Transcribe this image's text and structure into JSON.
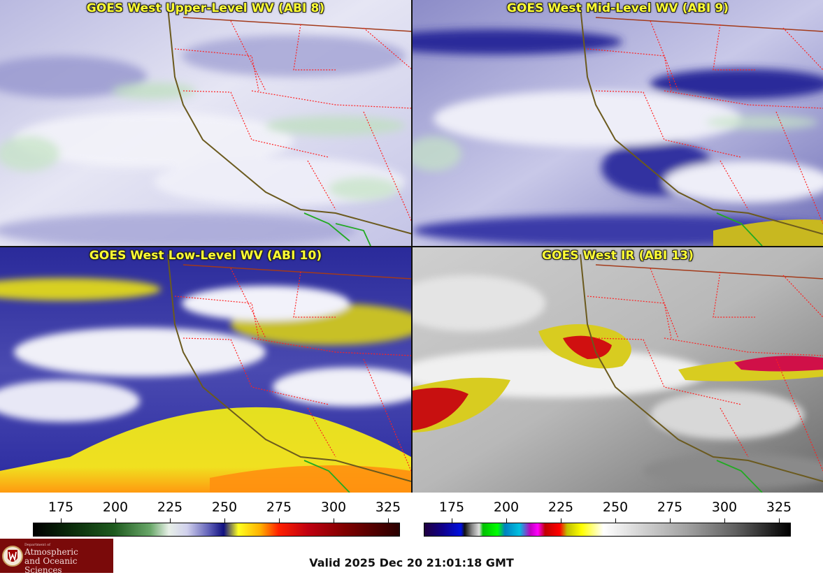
{
  "panels": [
    {
      "title": "GOES West Upper-Level WV (ABI 8)",
      "palette": "wv-upper"
    },
    {
      "title": "GOES West Mid-Level WV (ABI 9)",
      "palette": "wv-mid"
    },
    {
      "title": "GOES West Low-Level WV (ABI 10)",
      "palette": "wv-low"
    },
    {
      "title": "GOES West IR (ABI 13)",
      "palette": "ir"
    }
  ],
  "colorbars": {
    "tick_labels": [
      "175",
      "200",
      "225",
      "250",
      "275",
      "300",
      "325"
    ]
  },
  "logo": {
    "line_small": "Department of",
    "line1": "Atmospheric",
    "line2": "and Oceanic Sciences"
  },
  "valid_time": "Valid 2025 Dec 20 21:01:18 GMT",
  "colors": {
    "title_yellow": "#ffff33",
    "state_border": "#ff2020",
    "coastline": "#6b5a1e",
    "mexico_border": "#22aa22",
    "logo_bg": "#7a0a0a"
  }
}
